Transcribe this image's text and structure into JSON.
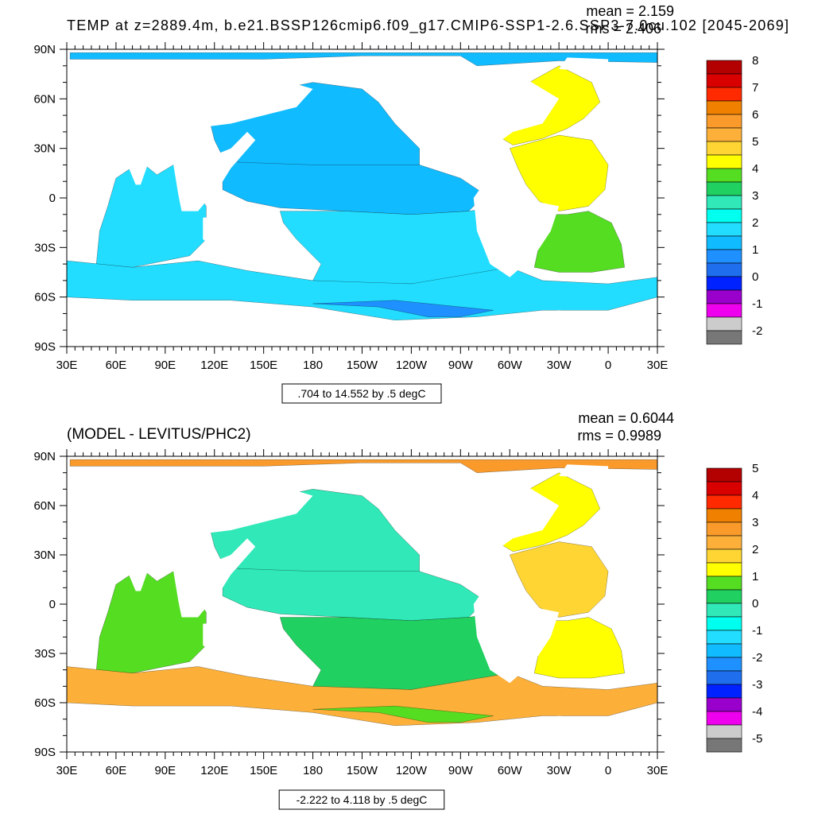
{
  "chart_data": [
    {
      "type": "heatmap",
      "title": "TEMP at z=2889.4m, b.e21.BSSP126cmip6.f09_g17.CMIP6-SSP1-2.6.SSP3-7.0cu.102 [2045-2069]",
      "stats": {
        "mean": "mean = 2.159",
        "rms": "rms = 2.406"
      },
      "range_label": ".704 to 14.552 by .5 degC",
      "x_ticks": [
        "30E",
        "60E",
        "90E",
        "120E",
        "150E",
        "180",
        "150W",
        "120W",
        "90W",
        "60W",
        "30W",
        "0",
        "30E"
      ],
      "y_ticks": [
        "90N",
        "60N",
        "30N",
        "0",
        "30S",
        "60S",
        "90S"
      ],
      "colorbar": {
        "labels": [
          "8",
          "7",
          "6",
          "5",
          "4",
          "3",
          "2",
          "1",
          "0",
          "-1",
          "-2"
        ],
        "colors": [
          "#B30000",
          "#D90000",
          "#FF2A00",
          "#F08000",
          "#F99A2A",
          "#FCB03A",
          "#FFD534",
          "#FFFF00",
          "#55DD22",
          "#20D060",
          "#30E8B8",
          "#00FFEE",
          "#22DDFF",
          "#11BBFF",
          "#1E90FF",
          "#1E6EEE",
          "#0022FF",
          "#9900CC",
          "#EE00EE",
          "#CCCCCC",
          "#777777"
        ]
      },
      "regions": [
        {
          "name": "arctic",
          "value": 1.2,
          "color": "#11BBFF"
        },
        {
          "name": "north-pacific",
          "value": 1.2,
          "color": "#11BBFF"
        },
        {
          "name": "tropical-pacific",
          "value": 1.3,
          "color": "#11BBFF"
        },
        {
          "name": "south-pacific",
          "value": 1.8,
          "color": "#22DDFF"
        },
        {
          "name": "indian-ocean",
          "value": 1.8,
          "color": "#22DDFF"
        },
        {
          "name": "southern-ocean",
          "value": 1.7,
          "color": "#22DDFF"
        },
        {
          "name": "north-atlantic",
          "value": 3.8,
          "color": "#FFFF00"
        },
        {
          "name": "tropical-atlantic",
          "value": 3.9,
          "color": "#FFFF00"
        },
        {
          "name": "south-atlantic",
          "value": 3.3,
          "color": "#55DD22"
        },
        {
          "name": "antarctic-margin",
          "value": 1.0,
          "color": "#1E90FF"
        }
      ]
    },
    {
      "type": "heatmap",
      "title": "(MODEL - LEVITUS/PHC2)",
      "stats": {
        "mean": "mean = 0.6044",
        "rms": "rms = 0.9989"
      },
      "range_label": "-2.222 to 4.118 by .5 degC",
      "x_ticks": [
        "30E",
        "60E",
        "90E",
        "120E",
        "150E",
        "180",
        "150W",
        "120W",
        "90W",
        "60W",
        "30W",
        "0",
        "30E"
      ],
      "y_ticks": [
        "90N",
        "60N",
        "30N",
        "0",
        "30S",
        "60S",
        "90S"
      ],
      "colorbar": {
        "labels": [
          "5",
          "4",
          "3",
          "2",
          "1",
          "0",
          "-1",
          "-2",
          "-3",
          "-4",
          "-5"
        ],
        "colors": [
          "#B30000",
          "#D90000",
          "#FF2A00",
          "#F08000",
          "#F99A2A",
          "#FCB03A",
          "#FFD534",
          "#FFFF00",
          "#55DD22",
          "#20D060",
          "#30E8B8",
          "#00FFEE",
          "#22DDFF",
          "#11BBFF",
          "#1E90FF",
          "#1E6EEE",
          "#0022FF",
          "#9900CC",
          "#EE00EE",
          "#CCCCCC",
          "#777777"
        ]
      },
      "regions": [
        {
          "name": "arctic",
          "value": 1.7,
          "color": "#F99A2A"
        },
        {
          "name": "north-pacific",
          "value": -0.3,
          "color": "#30E8B8"
        },
        {
          "name": "tropical-pacific",
          "value": -0.3,
          "color": "#30E8B8"
        },
        {
          "name": "south-pacific",
          "value": 0.3,
          "color": "#20D060"
        },
        {
          "name": "indian-ocean",
          "value": 0.3,
          "color": "#55DD22"
        },
        {
          "name": "southern-ocean",
          "value": 1.6,
          "color": "#FCB03A"
        },
        {
          "name": "north-atlantic",
          "value": 1.3,
          "color": "#FFFF00"
        },
        {
          "name": "tropical-atlantic",
          "value": 1.6,
          "color": "#FFD534"
        },
        {
          "name": "south-atlantic",
          "value": 1.1,
          "color": "#FFFF00"
        },
        {
          "name": "antarctic-margin",
          "value": 0.4,
          "color": "#55DD22"
        }
      ]
    }
  ]
}
